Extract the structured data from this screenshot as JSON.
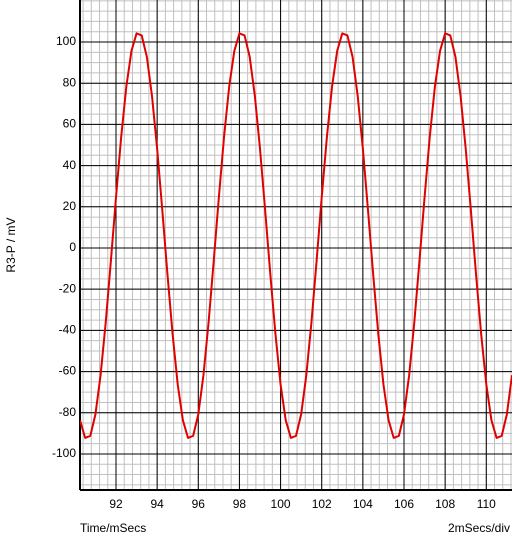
{
  "chart_data": {
    "type": "line",
    "xlabel": "Time/mSecs",
    "ylabel": "R3-P / mV",
    "annotation": "2mSecs/div",
    "xlim": [
      90.25,
      111.25
    ],
    "xticks": [
      92,
      94,
      96,
      98,
      100,
      102,
      104,
      106,
      108,
      110
    ],
    "ylim": [
      -117.5,
      120.4
    ],
    "yticks": [
      -100,
      -80,
      -60,
      -40,
      -20,
      0,
      20,
      40,
      60,
      80,
      100
    ],
    "grid": true,
    "x": [
      90.25,
      90.5,
      90.75,
      91,
      91.25,
      91.5,
      91.75,
      92,
      92.25,
      92.5,
      92.75,
      93,
      93.25,
      93.5,
      93.75,
      94,
      94.25,
      94.5,
      94.75,
      95,
      95.25,
      95.5,
      95.75,
      96,
      96.25,
      96.5,
      96.75,
      97,
      97.25,
      97.5,
      97.75,
      98,
      98.25,
      98.5,
      98.75,
      99,
      99.25,
      99.5,
      99.75,
      100,
      100.25,
      100.5,
      100.75,
      101,
      101.25,
      101.5,
      101.75,
      102,
      102.25,
      102.5,
      102.75,
      103,
      103.25,
      103.5,
      103.75,
      104,
      104.25,
      104.5,
      104.75,
      105,
      105.25,
      105.5,
      105.75,
      106,
      106.25,
      106.5,
      106.75,
      107,
      107.25,
      107.5,
      107.75,
      108,
      108.25,
      108.5,
      108.75,
      109,
      109.25,
      109.5,
      109.75,
      110,
      110.25,
      110.5,
      110.75,
      111,
      111.25
    ],
    "series": [
      {
        "name": "R3-P",
        "color": "#e00000",
        "values": [
          -83.6,
          -92.2,
          -91.2,
          -80.8,
          -61.8,
          -36.2,
          -6.4,
          24.6,
          53.7,
          78.2,
          95.6,
          104.2,
          103.2,
          92.8,
          73.8,
          48.2,
          18.4,
          -12.6,
          -41.7,
          -66.2,
          -83.6,
          -92.2,
          -91.2,
          -80.8,
          -61.8,
          -36.2,
          -6.4,
          24.6,
          53.7,
          78.2,
          95.6,
          104.2,
          103.2,
          92.8,
          73.8,
          48.2,
          18.4,
          -12.6,
          -41.7,
          -66.2,
          -83.6,
          -92.2,
          -91.2,
          -80.8,
          -61.8,
          -36.2,
          -6.4,
          24.6,
          53.7,
          78.2,
          95.6,
          104.2,
          103.2,
          92.8,
          73.8,
          48.2,
          18.4,
          -12.6,
          -41.7,
          -66.2,
          -83.6,
          -92.2,
          -91.2,
          -80.8,
          -61.8,
          -36.2,
          -6.4,
          24.6,
          53.7,
          78.2,
          95.6,
          104.2,
          103.2,
          92.8,
          73.8,
          48.2,
          18.4,
          -12.6,
          -41.7,
          -66.2,
          -83.6,
          -92.2,
          -91.2,
          -80.8,
          -61.8
        ]
      }
    ]
  }
}
